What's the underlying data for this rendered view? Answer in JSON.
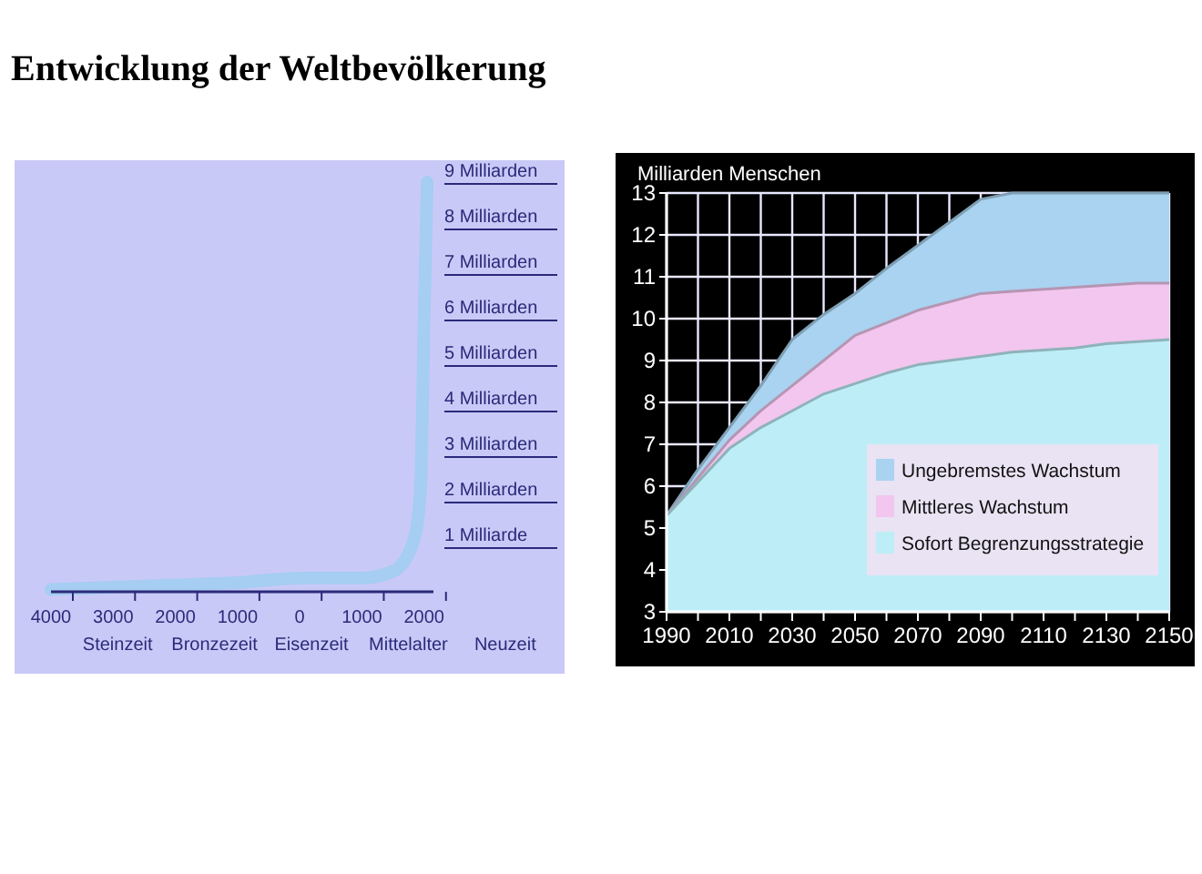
{
  "chart_data": [
    {
      "type": "line",
      "title": "Entwicklung der Weltbevölkerung",
      "color": "#a6cdf2",
      "x": [
        -4000,
        -3000,
        -2000,
        -1000,
        0,
        1000,
        1500,
        1800,
        1900,
        1950,
        2000,
        2050
      ],
      "values": [
        0.05,
        0.1,
        0.15,
        0.2,
        0.3,
        0.3,
        0.45,
        1,
        1.6,
        2.5,
        6,
        9
      ],
      "xlim": [
        -4000,
        2150
      ],
      "ylim": [
        0,
        9
      ],
      "xticks": [
        {
          "value": -4000,
          "label": "4000"
        },
        {
          "value": -3000,
          "label": "3000"
        },
        {
          "value": -2000,
          "label": "2000"
        },
        {
          "value": -1000,
          "label": "1000"
        },
        0,
        1000,
        2000
      ],
      "yticks": [
        {
          "value": 1,
          "label": "1 Milliarde"
        },
        {
          "value": 2,
          "label": "2 Milliarden"
        },
        {
          "value": 3,
          "label": "3 Milliarden"
        },
        {
          "value": 4,
          "label": "4 Milliarden"
        },
        {
          "value": 5,
          "label": "5 Milliarden"
        },
        {
          "value": 6,
          "label": "6 Milliarden"
        },
        {
          "value": 7,
          "label": "7 Milliarden"
        },
        {
          "value": 8,
          "label": "8 Milliarden"
        },
        {
          "value": 9,
          "label": "9 Milliarden"
        }
      ],
      "annotations": [
        "Steinzeit",
        "Bronzezeit",
        "Eisenzeit",
        "Mittelalter",
        "Neuzeit"
      ],
      "grid": false,
      "legend": false
    },
    {
      "type": "area",
      "ylabel": "Milliarden Menschen",
      "x": [
        1990,
        2000,
        2010,
        2020,
        2030,
        2040,
        2050,
        2060,
        2070,
        2080,
        2090,
        2100,
        2110,
        2120,
        2130,
        2140,
        2150
      ],
      "series": [
        {
          "name": "Ungebremstes Wachstum",
          "color": "#a9d3f0",
          "values": [
            5.3,
            6.4,
            7.4,
            8.4,
            9.5,
            10.1,
            10.6,
            11.2,
            11.75,
            12.3,
            12.85,
            13,
            13,
            13,
            13,
            13,
            13
          ]
        },
        {
          "name": "Mittleres Wachstum",
          "color": "#f2c6ee",
          "values": [
            5.3,
            6.2,
            7.1,
            7.8,
            8.4,
            9.0,
            9.6,
            9.9,
            10.2,
            10.4,
            10.6,
            10.65,
            10.7,
            10.75,
            10.8,
            10.85,
            10.85
          ]
        },
        {
          "name": "Sofort Begrenzungsstrategie",
          "color": "#bdeef8",
          "values": [
            5.3,
            6.1,
            6.9,
            7.4,
            7.8,
            8.2,
            8.45,
            8.7,
            8.9,
            9.0,
            9.1,
            9.2,
            9.25,
            9.3,
            9.4,
            9.45,
            9.5
          ]
        }
      ],
      "xlim": [
        1990,
        2150
      ],
      "ylim": [
        3,
        13
      ],
      "xticks": [
        1990,
        {
          "value": 2000,
          "label": null
        },
        2010,
        {
          "value": 2020,
          "label": null
        },
        2030,
        {
          "value": 2040,
          "label": null
        },
        2050,
        {
          "value": 2060,
          "label": null
        },
        2070,
        {
          "value": 2080,
          "label": null
        },
        2090,
        {
          "value": 2100,
          "label": null
        },
        2110,
        {
          "value": 2120,
          "label": null
        },
        2130,
        {
          "value": 2140,
          "label": null
        },
        2150
      ],
      "yticks": [
        3,
        4,
        5,
        6,
        7,
        8,
        9,
        10,
        11,
        12,
        13
      ],
      "grid": true,
      "legend": "bottom right"
    }
  ]
}
